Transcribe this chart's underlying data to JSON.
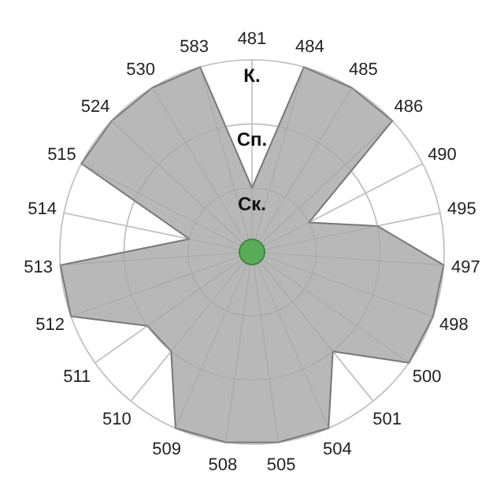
{
  "chart_data": {
    "type": "radar",
    "categories": [
      "481",
      "484",
      "485",
      "486",
      "490",
      "495",
      "497",
      "498",
      "500",
      "501",
      "504",
      "505",
      "508",
      "509",
      "510",
      "511",
      "512",
      "513",
      "514",
      "515",
      "524",
      "530",
      "583"
    ],
    "series": [
      {
        "color": "#b8b8b8",
        "values": [
          1,
          3,
          3,
          3,
          1,
          2,
          3,
          3,
          3,
          2,
          3,
          3,
          3,
          3,
          2,
          2,
          3,
          3,
          1,
          3,
          3,
          3,
          3
        ]
      }
    ],
    "ylim": [
      0,
      3
    ],
    "yticks": [
      {
        "value": 1,
        "label": "Ск."
      },
      {
        "value": 2,
        "label": "Сп."
      },
      {
        "value": 3,
        "label": "К."
      }
    ],
    "grid": true
  }
}
